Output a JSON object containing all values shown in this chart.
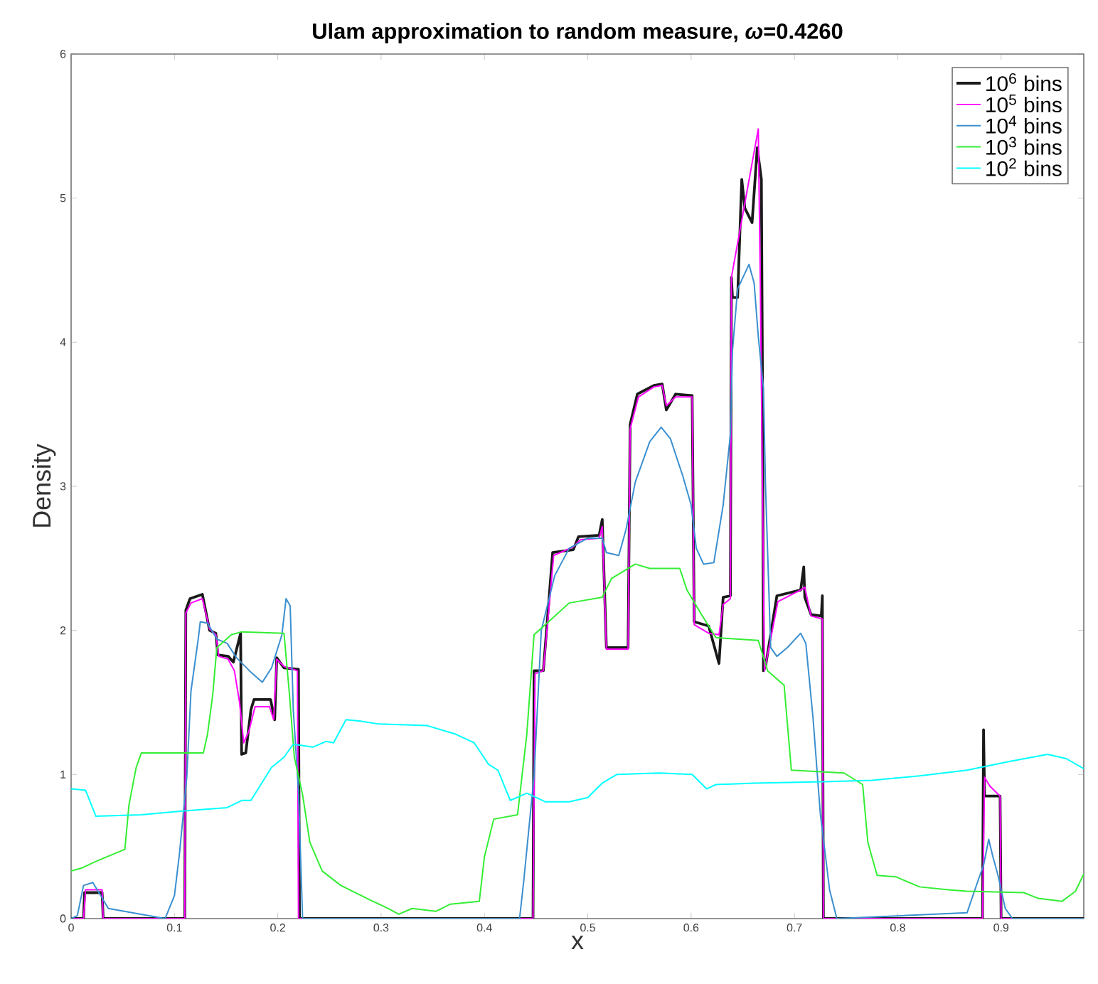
{
  "chart_data": {
    "type": "line",
    "title": "Ulam approximation to random measure, *ω*=0.4260",
    "xlabel": "x",
    "ylabel": "Density",
    "xlim": [
      0,
      0.98
    ],
    "ylim": [
      0,
      6
    ],
    "xticks": [
      0,
      0.1,
      0.2,
      0.3,
      0.4,
      0.5,
      0.6,
      0.7,
      0.8,
      0.9
    ],
    "yticks": [
      0,
      1,
      2,
      3,
      4,
      5,
      6
    ],
    "legend": "top right",
    "marker": "none",
    "series": [
      {
        "name": "10$^{6}$ bins",
        "color": "#1a1a1a",
        "x": [
          0,
          0.012,
          0.013,
          0.03,
          0.031,
          0.11,
          0.111,
          0.115,
          0.127,
          0.134,
          0.14,
          0.142,
          0.152,
          0.157,
          0.164,
          0.165,
          0.169,
          0.174,
          0.177,
          0.193,
          0.197,
          0.199,
          0.206,
          0.22,
          0.221,
          0.447,
          0.448,
          0.457,
          0.466,
          0.486,
          0.491,
          0.511,
          0.514,
          0.518,
          0.539,
          0.541,
          0.548,
          0.564,
          0.572,
          0.576,
          0.585,
          0.601,
          0.603,
          0.617,
          0.627,
          0.631,
          0.638,
          0.639,
          0.64,
          0.645,
          0.649,
          0.652,
          0.659,
          0.664,
          0.668,
          0.669,
          0.67,
          0.672,
          0.683,
          0.706,
          0.709,
          0.71,
          0.716,
          0.726,
          0.727,
          0.728,
          0.882,
          0.883,
          0.884,
          0.899,
          0.9,
          0.98
        ],
        "values": [
          0,
          0,
          0.18,
          0.18,
          0,
          0,
          2.14,
          2.22,
          2.25,
          2.0,
          1.98,
          1.83,
          1.82,
          1.78,
          1.98,
          1.14,
          1.15,
          1.45,
          1.52,
          1.52,
          1.38,
          1.81,
          1.74,
          1.73,
          0,
          0,
          1.72,
          1.72,
          2.54,
          2.56,
          2.65,
          2.66,
          2.77,
          1.88,
          1.88,
          3.43,
          3.64,
          3.7,
          3.71,
          3.53,
          3.64,
          3.63,
          2.06,
          2.03,
          1.77,
          2.23,
          2.24,
          4.45,
          4.31,
          4.31,
          5.13,
          4.93,
          4.83,
          5.35,
          5.13,
          3.81,
          1.72,
          1.75,
          2.24,
          2.28,
          2.44,
          2.23,
          2.11,
          2.1,
          2.24,
          0,
          0,
          1.31,
          0.85,
          0.85,
          0,
          0
        ]
      },
      {
        "name": "10$^{5}$ bins",
        "color": "#ff00ff",
        "x": [
          0,
          0.012,
          0.014,
          0.03,
          0.031,
          0.11,
          0.111,
          0.116,
          0.127,
          0.134,
          0.14,
          0.143,
          0.152,
          0.158,
          0.163,
          0.167,
          0.172,
          0.178,
          0.192,
          0.196,
          0.199,
          0.206,
          0.219,
          0.22,
          0.447,
          0.449,
          0.457,
          0.467,
          0.486,
          0.493,
          0.511,
          0.514,
          0.518,
          0.539,
          0.541,
          0.549,
          0.564,
          0.572,
          0.576,
          0.585,
          0.601,
          0.603,
          0.617,
          0.627,
          0.631,
          0.638,
          0.639,
          0.665,
          0.667,
          0.669,
          0.671,
          0.684,
          0.706,
          0.71,
          0.716,
          0.727,
          0.728,
          0.882,
          0.884,
          0.889,
          0.899,
          0.9,
          0.98
        ],
        "values": [
          0,
          0,
          0.2,
          0.2,
          0,
          0,
          2.12,
          2.19,
          2.22,
          2.01,
          1.97,
          1.82,
          1.8,
          1.72,
          1.5,
          1.22,
          1.3,
          1.47,
          1.47,
          1.38,
          1.8,
          1.75,
          1.72,
          0,
          0,
          1.7,
          1.72,
          2.52,
          2.58,
          2.63,
          2.64,
          2.72,
          1.87,
          1.87,
          3.4,
          3.62,
          3.69,
          3.7,
          3.56,
          3.62,
          3.62,
          2.04,
          1.98,
          1.97,
          2.18,
          2.22,
          4.45,
          5.48,
          4.4,
          3.0,
          1.72,
          2.2,
          2.28,
          2.3,
          2.1,
          2.08,
          0,
          0,
          0.98,
          0.92,
          0.85,
          0,
          0
        ]
      },
      {
        "name": "10$^{4}$ bins",
        "color": "#3a8fd0",
        "x": [
          0,
          0.006,
          0.012,
          0.021,
          0.036,
          0.091,
          0.1,
          0.105,
          0.112,
          0.116,
          0.123,
          0.125,
          0.132,
          0.141,
          0.151,
          0.16,
          0.174,
          0.185,
          0.194,
          0.204,
          0.208,
          0.212,
          0.215,
          0.22,
          0.224,
          0.434,
          0.438,
          0.448,
          0.455,
          0.468,
          0.482,
          0.5,
          0.514,
          0.518,
          0.53,
          0.537,
          0.546,
          0.56,
          0.571,
          0.58,
          0.592,
          0.6,
          0.605,
          0.612,
          0.622,
          0.631,
          0.638,
          0.64,
          0.645,
          0.656,
          0.661,
          0.665,
          0.67,
          0.672,
          0.677,
          0.683,
          0.693,
          0.706,
          0.711,
          0.718,
          0.725,
          0.734,
          0.741,
          0.867,
          0.878,
          0.883,
          0.888,
          0.892,
          0.897,
          0.904,
          0.911,
          0.98
        ],
        "values": [
          0,
          0.02,
          0.23,
          0.25,
          0.07,
          0,
          0.16,
          0.46,
          0.99,
          1.58,
          1.94,
          2.06,
          2.05,
          1.94,
          1.91,
          1.81,
          1.71,
          1.64,
          1.74,
          1.97,
          2.22,
          2.17,
          1.45,
          0.89,
          0,
          0,
          0.26,
          0.99,
          2.0,
          2.38,
          2.57,
          2.64,
          2.64,
          2.54,
          2.52,
          2.7,
          3.03,
          3.31,
          3.41,
          3.33,
          3.07,
          2.87,
          2.57,
          2.46,
          2.47,
          2.87,
          3.36,
          3.94,
          4.37,
          4.54,
          4.41,
          4.04,
          3.68,
          3.0,
          1.88,
          1.82,
          1.88,
          1.98,
          1.91,
          1.39,
          0.73,
          0.2,
          0,
          0.04,
          0.27,
          0.37,
          0.55,
          0.43,
          0.3,
          0.07,
          0,
          0
        ]
      },
      {
        "name": "10$^{3}$ bins",
        "color": "#33ee33",
        "x": [
          0,
          0.01,
          0.022,
          0.035,
          0.052,
          0.056,
          0.063,
          0.068,
          0.128,
          0.132,
          0.137,
          0.141,
          0.155,
          0.165,
          0.206,
          0.211,
          0.216,
          0.224,
          0.231,
          0.243,
          0.261,
          0.289,
          0.307,
          0.317,
          0.33,
          0.353,
          0.367,
          0.395,
          0.4,
          0.409,
          0.432,
          0.441,
          0.448,
          0.459,
          0.482,
          0.514,
          0.523,
          0.546,
          0.56,
          0.589,
          0.596,
          0.61,
          0.624,
          0.665,
          0.674,
          0.69,
          0.697,
          0.748,
          0.766,
          0.771,
          0.78,
          0.798,
          0.821,
          0.849,
          0.867,
          0.922,
          0.936,
          0.959,
          0.972,
          0.98
        ],
        "values": [
          0.33,
          0.35,
          0.39,
          0.43,
          0.48,
          0.79,
          1.05,
          1.15,
          1.15,
          1.28,
          1.55,
          1.88,
          1.97,
          1.99,
          1.98,
          1.58,
          1.12,
          0.86,
          0.53,
          0.33,
          0.23,
          0.13,
          0.07,
          0.03,
          0.07,
          0.05,
          0.1,
          0.12,
          0.43,
          0.69,
          0.72,
          1.28,
          1.97,
          2.04,
          2.19,
          2.23,
          2.36,
          2.46,
          2.43,
          2.43,
          2.28,
          2.11,
          1.95,
          1.93,
          1.72,
          1.62,
          1.03,
          1.01,
          0.93,
          0.53,
          0.3,
          0.29,
          0.22,
          0.2,
          0.19,
          0.18,
          0.14,
          0.12,
          0.19,
          0.31
        ]
      },
      {
        "name": "10$^{2}$ bins",
        "color": "#00ffff",
        "x": [
          0,
          0.014,
          0.024,
          0.068,
          0.114,
          0.151,
          0.165,
          0.174,
          0.194,
          0.206,
          0.215,
          0.234,
          0.247,
          0.254,
          0.266,
          0.28,
          0.298,
          0.344,
          0.372,
          0.39,
          0.404,
          0.413,
          0.425,
          0.441,
          0.459,
          0.482,
          0.5,
          0.514,
          0.528,
          0.569,
          0.601,
          0.615,
          0.624,
          0.661,
          0.729,
          0.775,
          0.821,
          0.867,
          0.908,
          0.945,
          0.963,
          0.98
        ],
        "values": [
          0.9,
          0.89,
          0.71,
          0.72,
          0.75,
          0.77,
          0.82,
          0.82,
          1.05,
          1.12,
          1.21,
          1.19,
          1.23,
          1.22,
          1.38,
          1.37,
          1.35,
          1.34,
          1.28,
          1.22,
          1.07,
          1.03,
          0.82,
          0.87,
          0.81,
          0.81,
          0.84,
          0.94,
          1.0,
          1.01,
          1.0,
          0.9,
          0.93,
          0.94,
          0.95,
          0.96,
          0.99,
          1.03,
          1.09,
          1.14,
          1.11,
          1.04
        ]
      }
    ]
  }
}
